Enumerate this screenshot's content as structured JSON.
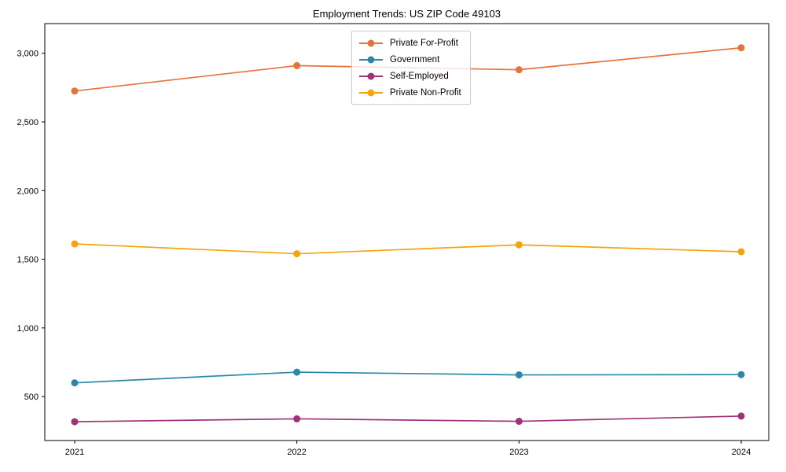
{
  "chart_data": {
    "type": "line",
    "title": "Employment Trends: US ZIP Code 49103",
    "xlabel": "",
    "ylabel": "",
    "categories": [
      "2021",
      "2022",
      "2023",
      "2024"
    ],
    "series": [
      {
        "name": "Private For-Profit",
        "color": "#e4743c",
        "values": [
          2725,
          2910,
          2880,
          3040
        ]
      },
      {
        "name": "Government",
        "color": "#2e87a8",
        "values": [
          600,
          678,
          658,
          660
        ]
      },
      {
        "name": "Self-Employed",
        "color": "#a03179",
        "values": [
          317,
          338,
          320,
          358
        ]
      },
      {
        "name": "Private Non-Profit",
        "color": "#f5a40a",
        "values": [
          1612,
          1540,
          1605,
          1555
        ]
      }
    ],
    "y_ticks": {
      "values": [
        500,
        1000,
        1500,
        2000,
        2500,
        3000
      ],
      "labels": [
        "500",
        "1,000",
        "1,500",
        "2,000",
        "2,500",
        "3,000"
      ]
    },
    "ylim": [
      180,
      3216
    ],
    "grid": false,
    "legend_position": "upper-center",
    "axis_color": "#000000",
    "background_color": "#ffffff"
  }
}
